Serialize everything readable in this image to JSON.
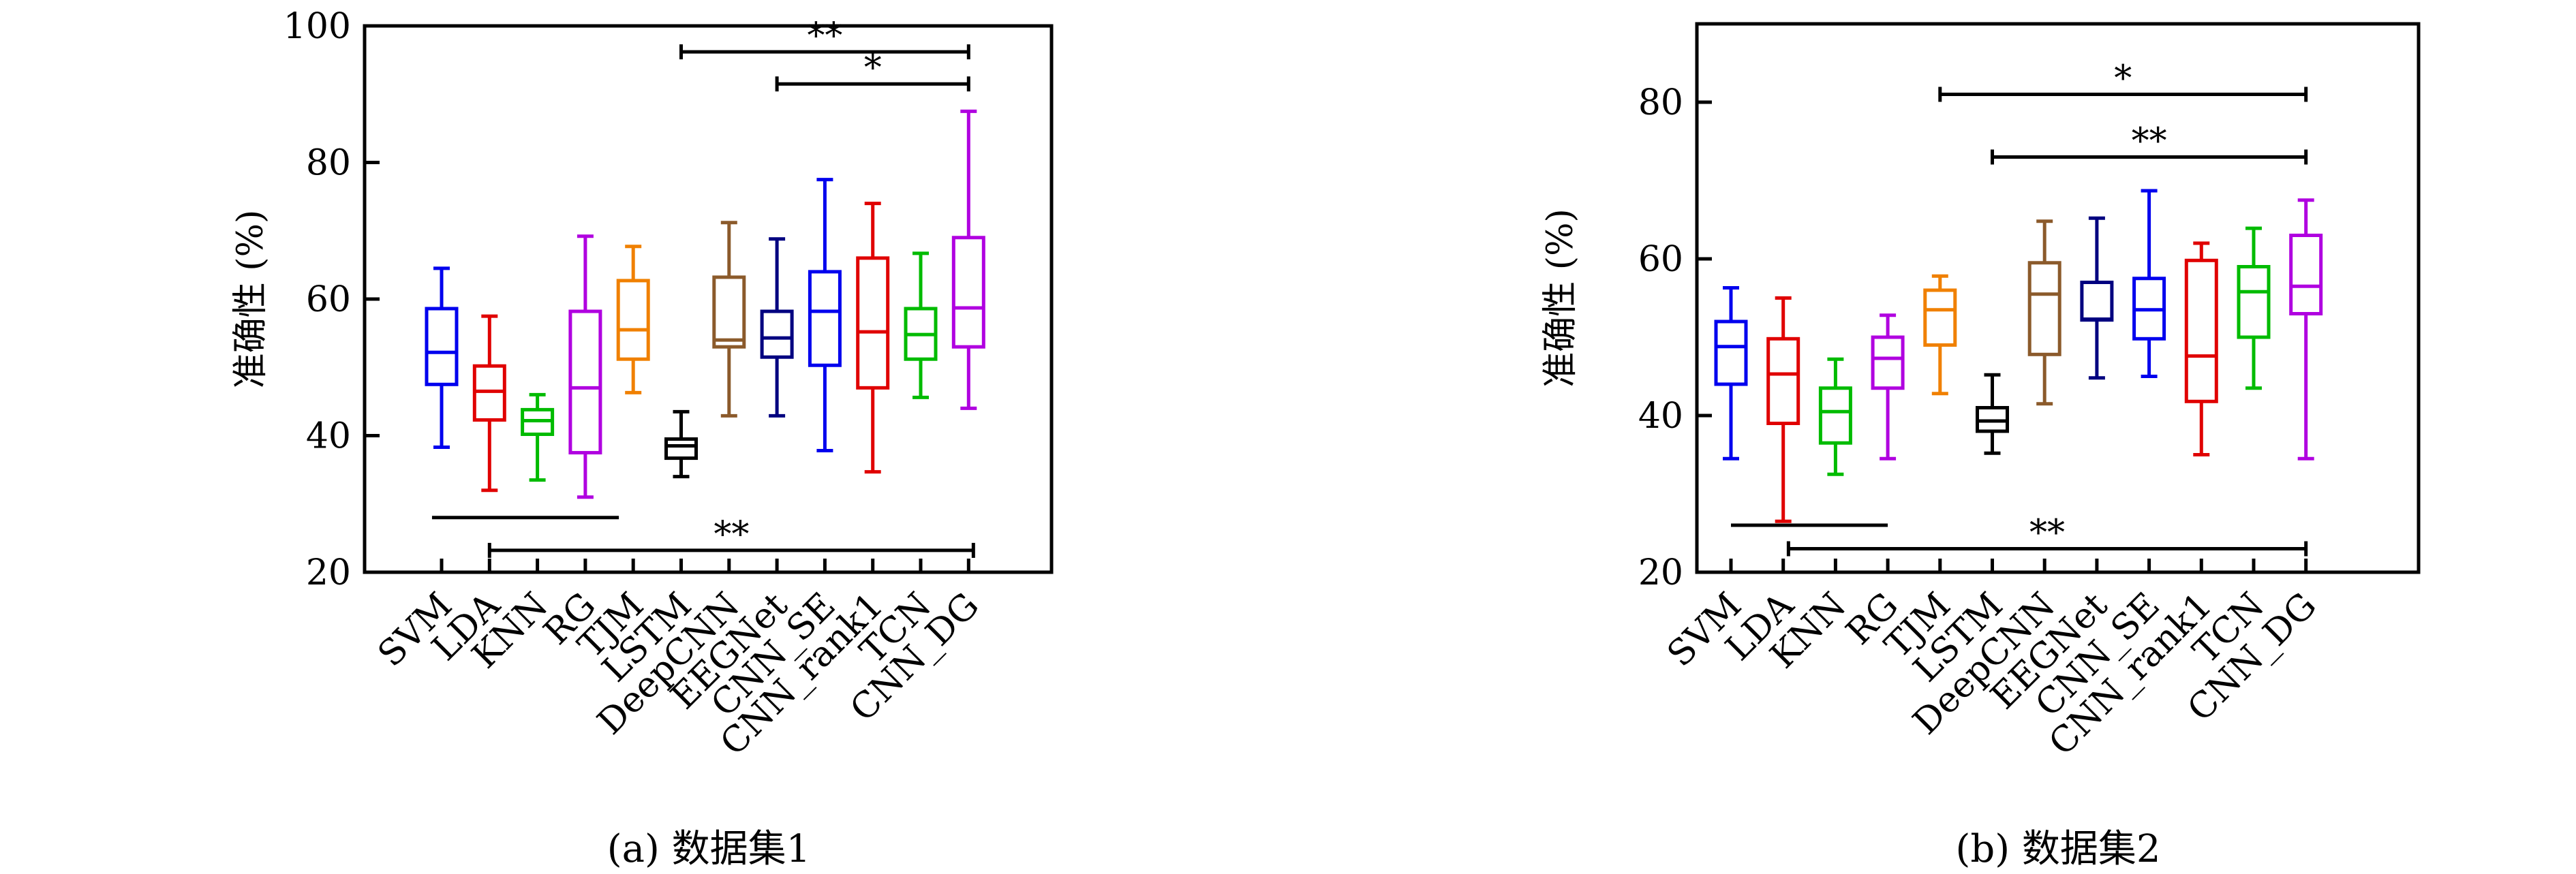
{
  "chart_data": [
    {
      "type": "box",
      "caption": "(a) 数据集1",
      "ylabel": "准确性 (%)",
      "xlabel": "",
      "ylim": [
        20,
        100
      ],
      "yticks": [
        20,
        40,
        60,
        80,
        100
      ],
      "grid": false,
      "categories": [
        "SVM",
        "LDA",
        "KNN",
        "RG",
        "TJM",
        "LSTM",
        "DeepCNN",
        "EEGNet",
        "CNN_SE",
        "CNN_rank1",
        "TCN",
        "CNN_DG"
      ],
      "colors": [
        "#0000ee",
        "#e00000",
        "#00bb00",
        "#b000e0",
        "#f08000",
        "#000000",
        "#8b5a2b",
        "#000080",
        "#0000ee",
        "#e00000",
        "#00bb00",
        "#b000e0"
      ],
      "boxes": [
        {
          "min": 38.3,
          "q1": 47.5,
          "median": 52.2,
          "q3": 58.6,
          "max": 64.5
        },
        {
          "min": 32.0,
          "q1": 42.3,
          "median": 46.5,
          "q3": 50.2,
          "max": 57.5
        },
        {
          "min": 33.5,
          "q1": 40.2,
          "median": 42.2,
          "q3": 43.8,
          "max": 46.0
        },
        {
          "min": 31.0,
          "q1": 37.5,
          "median": 47.0,
          "q3": 58.2,
          "max": 69.2
        },
        {
          "min": 46.3,
          "q1": 51.2,
          "median": 55.5,
          "q3": 62.7,
          "max": 67.7
        },
        {
          "min": 34.0,
          "q1": 36.7,
          "median": 38.5,
          "q3": 39.5,
          "max": 43.5
        },
        {
          "min": 42.9,
          "q1": 53.0,
          "median": 54.0,
          "q3": 63.2,
          "max": 71.2
        },
        {
          "min": 42.9,
          "q1": 51.5,
          "median": 54.3,
          "q3": 58.2,
          "max": 68.8
        },
        {
          "min": 37.8,
          "q1": 50.3,
          "median": 58.2,
          "q3": 64.0,
          "max": 77.5
        },
        {
          "min": 34.7,
          "q1": 47.0,
          "median": 55.2,
          "q3": 66.0,
          "max": 74.0
        },
        {
          "min": 45.6,
          "q1": 51.2,
          "median": 54.8,
          "q3": 58.6,
          "max": 66.7
        },
        {
          "min": 44.0,
          "q1": 53.0,
          "median": 58.7,
          "q3": 69.0,
          "max": 87.5
        }
      ],
      "significance": [
        {
          "from": 5,
          "to": 11,
          "y": 96.2,
          "label": "**"
        },
        {
          "from": 7,
          "to": 11,
          "y": 91.5,
          "label": "*"
        },
        {
          "from": 1,
          "to": 11.1,
          "y": 23.2,
          "label": "**",
          "below": true
        },
        {
          "from": -0.2,
          "to": 3.7,
          "y": 28.0,
          "label": "",
          "below": true
        }
      ]
    },
    {
      "type": "box",
      "caption": "(b) 数据集2",
      "ylabel": "准确性 (%)",
      "xlabel": "",
      "ylim": [
        20,
        90
      ],
      "yticks": [
        20,
        40,
        60,
        80
      ],
      "grid": false,
      "categories": [
        "SVM",
        "LDA",
        "KNN",
        "RG",
        "TJM",
        "LSTM",
        "DeepCNN",
        "EEGNet",
        "CNN_SE",
        "CNN_rank1",
        "TCN",
        "CNN_DG"
      ],
      "colors": [
        "#0000ee",
        "#e00000",
        "#00bb00",
        "#b000e0",
        "#f08000",
        "#000000",
        "#8b5a2b",
        "#000080",
        "#0000ee",
        "#e00000",
        "#00bb00",
        "#b000e0"
      ],
      "boxes": [
        {
          "min": 34.5,
          "q1": 44.0,
          "median": 48.8,
          "q3": 52.0,
          "max": 56.3
        },
        {
          "min": 26.5,
          "q1": 39.0,
          "median": 45.3,
          "q3": 49.8,
          "max": 55.0
        },
        {
          "min": 32.5,
          "q1": 36.5,
          "median": 40.5,
          "q3": 43.5,
          "max": 47.2
        },
        {
          "min": 34.5,
          "q1": 43.5,
          "median": 47.3,
          "q3": 50.0,
          "max": 52.8
        },
        {
          "min": 42.8,
          "q1": 49.0,
          "median": 53.5,
          "q3": 56.0,
          "max": 57.8
        },
        {
          "min": 35.2,
          "q1": 38.0,
          "median": 39.3,
          "q3": 41.0,
          "max": 45.2
        },
        {
          "min": 41.5,
          "q1": 47.8,
          "median": 55.5,
          "q3": 59.5,
          "max": 64.8
        },
        {
          "min": 44.8,
          "q1": 52.2,
          "median": 52.3,
          "q3": 57.0,
          "max": 65.2
        },
        {
          "min": 45.0,
          "q1": 49.8,
          "median": 53.5,
          "q3": 57.5,
          "max": 68.7
        },
        {
          "min": 35.0,
          "q1": 41.8,
          "median": 47.6,
          "q3": 59.8,
          "max": 62.0
        },
        {
          "min": 43.5,
          "q1": 50.0,
          "median": 55.8,
          "q3": 59.0,
          "max": 63.9
        },
        {
          "min": 34.5,
          "q1": 53.0,
          "median": 56.5,
          "q3": 63.0,
          "max": 67.5
        }
      ],
      "significance": [
        {
          "from": 4,
          "to": 11,
          "y": 81.0,
          "label": "*"
        },
        {
          "from": 5,
          "to": 11,
          "y": 73.0,
          "label": "**"
        },
        {
          "from": 1.1,
          "to": 11,
          "y": 23.0,
          "label": "**",
          "below": true
        },
        {
          "from": 0,
          "to": 3,
          "y": 26.0,
          "label": "",
          "below": true
        }
      ]
    }
  ]
}
